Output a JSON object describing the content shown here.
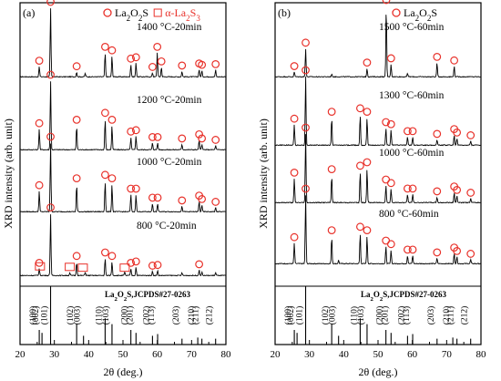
{
  "chart_data": [
    {
      "type": "line",
      "panel_label": "(a)",
      "legend": [
        {
          "marker": "circle",
          "text": "La2O2S",
          "color": "#e8312a"
        },
        {
          "marker": "square",
          "text": "α-La2S3",
          "color": "#e8312a"
        }
      ],
      "xlabel": "2θ (deg.)",
      "ylabel": "XRD intensity (arb. unit)",
      "xlim": [
        20,
        80
      ],
      "x_ticks": [
        20,
        30,
        40,
        50,
        60,
        70,
        80
      ],
      "series": [
        {
          "name": "1400 °C-20min",
          "peaks": [
            [
              25.6,
              0.15
            ],
            [
              28.9,
              1.0
            ],
            [
              36.5,
              0.07
            ],
            [
              39.0,
              0.05
            ],
            [
              44.8,
              0.35
            ],
            [
              46.8,
              0.3
            ],
            [
              52.3,
              0.18
            ],
            [
              53.8,
              0.2
            ],
            [
              58.6,
              0.06
            ],
            [
              60.0,
              0.35
            ],
            [
              61.2,
              0.14
            ],
            [
              67.2,
              0.08
            ],
            [
              72.2,
              0.11
            ],
            [
              73.0,
              0.09
            ],
            [
              77.0,
              0.1
            ]
          ]
        },
        {
          "name": "1200 °C-20min",
          "peaks": [
            [
              25.6,
              0.3
            ],
            [
              28.9,
              1.0
            ],
            [
              36.5,
              0.35
            ],
            [
              44.8,
              0.45
            ],
            [
              46.8,
              0.35
            ],
            [
              52.3,
              0.18
            ],
            [
              53.8,
              0.2
            ],
            [
              58.6,
              0.1
            ],
            [
              60.1,
              0.1
            ],
            [
              67.2,
              0.08
            ],
            [
              72.2,
              0.14
            ],
            [
              73.0,
              0.08
            ],
            [
              77.0,
              0.06
            ]
          ]
        },
        {
          "name": "1000 °C-20min",
          "peaks": [
            [
              25.6,
              0.3
            ],
            [
              28.9,
              1.0
            ],
            [
              36.5,
              0.4
            ],
            [
              44.8,
              0.45
            ],
            [
              46.8,
              0.4
            ],
            [
              52.3,
              0.25
            ],
            [
              53.8,
              0.25
            ],
            [
              58.6,
              0.12
            ],
            [
              60.1,
              0.12
            ],
            [
              67.2,
              0.08
            ],
            [
              72.2,
              0.15
            ],
            [
              73.0,
              0.1
            ],
            [
              77.0,
              0.06
            ]
          ]
        },
        {
          "name": "800 °C-20min",
          "peaks": [
            [
              25.6,
              0.1
            ],
            [
              28.9,
              0.9
            ],
            [
              34.5,
              0.04
            ],
            [
              36.5,
              0.2
            ],
            [
              39.0,
              0.05
            ],
            [
              44.8,
              0.25
            ],
            [
              46.8,
              0.2
            ],
            [
              50.5,
              0.05
            ],
            [
              52.3,
              0.1
            ],
            [
              53.8,
              0.12
            ],
            [
              58.6,
              0.06
            ],
            [
              60.1,
              0.07
            ],
            [
              67.2,
              0.04
            ],
            [
              72.2,
              0.08
            ],
            [
              73.0,
              0.05
            ],
            [
              77.0,
              0.04
            ]
          ]
        }
      ],
      "reference": {
        "title": "La2O2S,JCPDS#27-0263",
        "peaks": [
          {
            "x": 25.6,
            "i": 0.25,
            "hkl": "(100)"
          },
          {
            "x": 26.4,
            "i": 0.2,
            "hkl": "(002)"
          },
          {
            "x": 28.9,
            "i": 1.0,
            "hkl": "(101)"
          },
          {
            "x": 36.5,
            "i": 0.35,
            "hkl": "(102)"
          },
          {
            "x": 38.5,
            "i": 0.15,
            "hkl": "(003)"
          },
          {
            "x": 44.8,
            "i": 0.45,
            "hkl": "(110)"
          },
          {
            "x": 46.8,
            "i": 0.35,
            "hkl": "(103)"
          },
          {
            "x": 52.3,
            "i": 0.25,
            "hkl": "(200)"
          },
          {
            "x": 53.8,
            "i": 0.2,
            "hkl": "(201)"
          },
          {
            "x": 58.6,
            "i": 0.15,
            "hkl": "(202)"
          },
          {
            "x": 60.1,
            "i": 0.18,
            "hkl": "(113)"
          },
          {
            "x": 67.2,
            "i": 0.1,
            "hkl": "(203)"
          },
          {
            "x": 71.8,
            "i": 0.12,
            "hkl": "(210)"
          },
          {
            "x": 73.0,
            "i": 0.1,
            "hkl": "(211)"
          },
          {
            "x": 77.0,
            "i": 0.1,
            "hkl": "(212)"
          }
        ]
      }
    },
    {
      "type": "line",
      "panel_label": "(b)",
      "legend": [
        {
          "marker": "circle",
          "text": "La2O2S",
          "color": "#e8312a"
        }
      ],
      "xlabel": "2θ (deg.)",
      "ylabel": "XRD intensity (arb. unit)",
      "xlim": [
        20,
        80
      ],
      "x_ticks": [
        20,
        30,
        40,
        50,
        60,
        70,
        80
      ],
      "series": [
        {
          "name": "1500 °C-60min",
          "peaks": [
            [
              25.6,
              0.07
            ],
            [
              28.9,
              0.4
            ],
            [
              36.5,
              0.04
            ],
            [
              46.8,
              0.12
            ],
            [
              52.4,
              1.0
            ],
            [
              53.8,
              0.18
            ],
            [
              58.6,
              0.05
            ],
            [
              67.2,
              0.2
            ],
            [
              72.2,
              0.15
            ]
          ]
        },
        {
          "name": "1300 °C-60min",
          "peaks": [
            [
              25.6,
              0.3
            ],
            [
              28.9,
              1.0
            ],
            [
              36.5,
              0.4
            ],
            [
              44.8,
              0.45
            ],
            [
              46.8,
              0.4
            ],
            [
              52.3,
              0.25
            ],
            [
              53.8,
              0.22
            ],
            [
              58.6,
              0.12
            ],
            [
              60.1,
              0.12
            ],
            [
              67.2,
              0.08
            ],
            [
              72.2,
              0.15
            ],
            [
              73.0,
              0.1
            ],
            [
              77.0,
              0.06
            ]
          ]
        },
        {
          "name": "1000 °C-60min",
          "peaks": [
            [
              25.6,
              0.35
            ],
            [
              28.9,
              1.0
            ],
            [
              36.5,
              0.4
            ],
            [
              44.8,
              0.45
            ],
            [
              46.8,
              0.5
            ],
            [
              52.3,
              0.25
            ],
            [
              53.8,
              0.2
            ],
            [
              58.6,
              0.12
            ],
            [
              60.1,
              0.12
            ],
            [
              67.2,
              0.08
            ],
            [
              72.2,
              0.15
            ],
            [
              73.0,
              0.1
            ],
            [
              77.0,
              0.06
            ]
          ]
        },
        {
          "name": "800 °C-60min",
          "peaks": [
            [
              25.6,
              0.3
            ],
            [
              28.9,
              1.0
            ],
            [
              36.5,
              0.4
            ],
            [
              38.5,
              0.05
            ],
            [
              44.8,
              0.45
            ],
            [
              46.8,
              0.4
            ],
            [
              52.3,
              0.25
            ],
            [
              53.8,
              0.2
            ],
            [
              58.6,
              0.12
            ],
            [
              60.1,
              0.12
            ],
            [
              67.2,
              0.08
            ],
            [
              72.2,
              0.15
            ],
            [
              73.0,
              0.1
            ],
            [
              77.0,
              0.06
            ]
          ]
        }
      ],
      "reference": {
        "title": "La2O2S,JCPDS#27-0263",
        "peaks": [
          {
            "x": 25.6,
            "i": 0.25,
            "hkl": "(100)"
          },
          {
            "x": 26.4,
            "i": 0.2,
            "hkl": "(002)"
          },
          {
            "x": 28.9,
            "i": 1.0,
            "hkl": "(101)"
          },
          {
            "x": 36.5,
            "i": 0.35,
            "hkl": "(102)"
          },
          {
            "x": 38.5,
            "i": 0.15,
            "hkl": "(003)"
          },
          {
            "x": 44.8,
            "i": 0.45,
            "hkl": "(110)"
          },
          {
            "x": 46.8,
            "i": 0.35,
            "hkl": "(103)"
          },
          {
            "x": 52.3,
            "i": 0.25,
            "hkl": "(200)"
          },
          {
            "x": 53.8,
            "i": 0.2,
            "hkl": "(201)"
          },
          {
            "x": 58.6,
            "i": 0.15,
            "hkl": "(202)"
          },
          {
            "x": 60.1,
            "i": 0.18,
            "hkl": "(113)"
          },
          {
            "x": 67.2,
            "i": 0.1,
            "hkl": "(203)"
          },
          {
            "x": 71.8,
            "i": 0.12,
            "hkl": "(210)"
          },
          {
            "x": 73.0,
            "i": 0.1,
            "hkl": "(211)"
          },
          {
            "x": 77.0,
            "i": 0.1,
            "hkl": "(212)"
          }
        ]
      }
    }
  ]
}
